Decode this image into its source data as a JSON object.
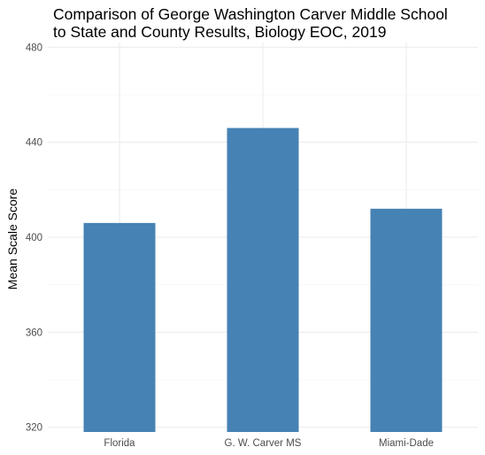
{
  "chart_data": {
    "type": "bar",
    "title_lines": [
      "Comparison of George Washington Carver Middle School",
      "to State and County Results, Biology EOC, 2019"
    ],
    "xlabel": "",
    "ylabel": "Mean Scale Score",
    "categories": [
      "Florida",
      "G. W. Carver MS",
      "Miami-Dade"
    ],
    "values": [
      406,
      446,
      412
    ],
    "ylim": [
      318,
      482
    ],
    "yticks": [
      320,
      360,
      400,
      440,
      480
    ],
    "yminor": [
      340,
      380,
      420,
      460
    ],
    "bar_color": "#4682b4",
    "grid": true,
    "legend": "none"
  }
}
